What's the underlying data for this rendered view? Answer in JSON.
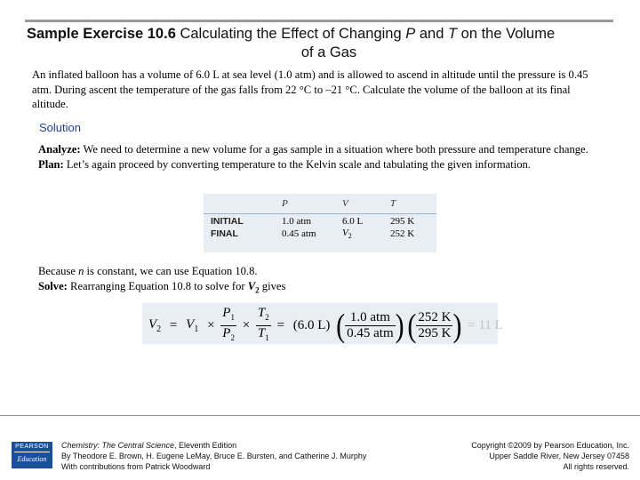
{
  "title": {
    "bold": "Sample Exercise 10.6",
    "text_a": " Calculating the Effect of Changing ",
    "var_p": "P",
    "text_b": " and ",
    "var_t": "T",
    "text_c": " on the Volume",
    "line2": "of a Gas"
  },
  "intro": "An inflated balloon has a volume of 6.0 L at sea level (1.0 atm) and is allowed to ascend in altitude until the pressure is 0.45 atm. During ascent the temperature of the gas falls from 22 °C to –21 °C. Calculate the volume of the balloon at its final altitude.",
  "solution_heading": "Solution",
  "analyze": {
    "label": "Analyze:",
    "text": " We need to determine a new volume for a gas sample in a situation where both pressure and temperature change."
  },
  "plan": {
    "label": "Plan:",
    "text": " Let’s again proceed by converting temperature to the Kelvin scale and tabulating the given information."
  },
  "table": {
    "headers": [
      "P",
      "V",
      "T"
    ],
    "rows": [
      {
        "label": "INITIAL",
        "p": "1.0 atm",
        "v": "6.0 L",
        "t": "295 K"
      },
      {
        "label": "FINAL",
        "p": "0.45 atm",
        "v_sym": "V",
        "v_sub": "2",
        "t": "252 K"
      }
    ]
  },
  "because": {
    "pre": "Because ",
    "var": "n",
    "post": " is constant, we can use Equation 10.8."
  },
  "solve": {
    "label": "Solve:",
    "text": " Rearranging Equation 10.8 to solve for ",
    "var": "V",
    "sub": "2",
    "post": " gives"
  },
  "equation": {
    "lhs": "V",
    "lhs_sub": "2",
    "eq": "=",
    "v1": "V",
    "v1_sub": "1",
    "times": "×",
    "p1": "P",
    "p1_sub": "1",
    "p2": "P",
    "p2_sub": "2",
    "t2": "T",
    "t2_sub": "2",
    "t1": "T",
    "t1_sub": "1",
    "val_v": "(6.0 L)",
    "num_p": "1.0 atm",
    "den_p": "0.45 atm",
    "num_t": "252 K",
    "den_t": "295 K",
    "result": "= 11 L"
  },
  "footer": {
    "logo_top": "PEARSON",
    "logo_bottom": "Education",
    "book_title": "Chemistry: The Central Science",
    "book_edition": ", Eleventh Edition",
    "authors": "By Theodore E. Brown, H. Eugene LeMay, Bruce E. Bursten, and Catherine J. Murphy",
    "contributions": "With contributions from Patrick Woodward",
    "copyright": "Copyright ©2009 by Pearson Education, Inc.",
    "address": "Upper Saddle River, New Jersey 07458",
    "rights": "All rights reserved."
  }
}
